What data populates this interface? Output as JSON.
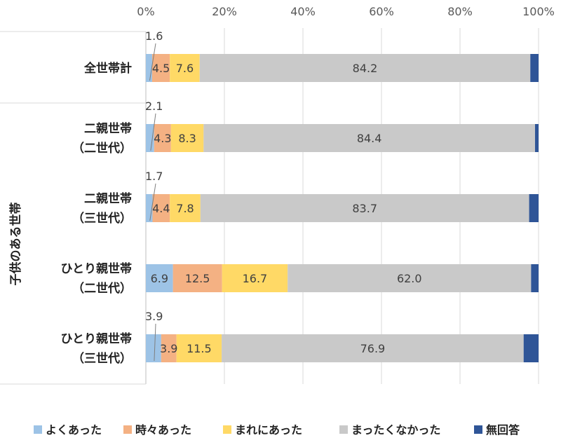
{
  "chart_data": {
    "type": "bar",
    "orientation": "horizontal",
    "stacked": true,
    "percent_stacked": true,
    "xlim": [
      0,
      100
    ],
    "x_ticks": [
      "0%",
      "20%",
      "40%",
      "60%",
      "80%",
      "100%"
    ],
    "group_label": "子供のある世帯",
    "categories": [
      {
        "lines": [
          "全世帯計"
        ]
      },
      {
        "lines": [
          "二親世帯",
          "（二世代）"
        ]
      },
      {
        "lines": [
          "二親世帯",
          "（三世代）"
        ]
      },
      {
        "lines": [
          "ひとり親世帯",
          "（二世代）"
        ]
      },
      {
        "lines": [
          "ひとり親世帯",
          "（三世代）"
        ]
      }
    ],
    "series": [
      {
        "name": "よくあった",
        "color": "#9DC3E6",
        "values": [
          1.6,
          2.1,
          1.7,
          6.9,
          3.9
        ]
      },
      {
        "name": "時々あった",
        "color": "#F4B183",
        "values": [
          4.5,
          4.3,
          4.4,
          12.5,
          3.9
        ]
      },
      {
        "name": "まれにあった",
        "color": "#FFD966",
        "values": [
          7.6,
          8.3,
          7.8,
          16.7,
          11.5
        ]
      },
      {
        "name": "まったくなかった",
        "color": "#C9C9C9",
        "values": [
          84.2,
          84.4,
          83.7,
          62.0,
          76.9
        ]
      },
      {
        "name": "無回答",
        "color": "#2F5597",
        "values": [
          2.1,
          0.9,
          2.4,
          1.9,
          3.8
        ]
      }
    ],
    "data_labels": [
      [
        "1.6",
        "4.5",
        "7.6",
        "84.2"
      ],
      [
        "2.1",
        "4.3",
        "8.3",
        "84.4"
      ],
      [
        "1.7",
        "4.4",
        "7.8",
        "83.7"
      ],
      [
        "6.9",
        "12.5",
        "16.7",
        "62.0"
      ],
      [
        "3.9",
        "3.9",
        "11.5",
        "76.9"
      ]
    ],
    "legend_position": "bottom",
    "grid": "vertical"
  }
}
